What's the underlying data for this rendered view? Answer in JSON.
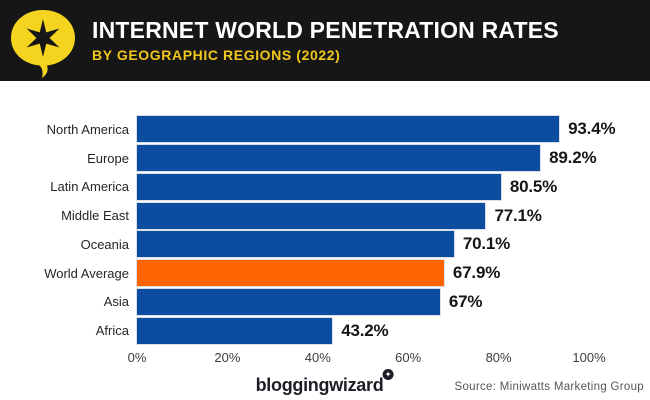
{
  "header": {
    "title": "INTERNET WORLD PENETRATION RATES",
    "subtitle": "BY GEOGRAPHIC REGIONS (2022)",
    "background": "#161616",
    "title_color": "#ffffff",
    "subtitle_color": "#f2c71d",
    "logo_icon": "speech-bubble-star-icon",
    "logo_yellow": "#f5d41f",
    "logo_star_color": "#161616"
  },
  "chart_data": {
    "type": "bar",
    "orientation": "horizontal",
    "title": "Internet World Penetration Rates",
    "subtitle": "By Geographic Regions (2022)",
    "categories": [
      "North America",
      "Europe",
      "Latin America",
      "Middle East",
      "Oceania",
      "World Average",
      "Asia",
      "Africa"
    ],
    "values": [
      93.4,
      89.2,
      80.5,
      77.1,
      70.1,
      67.9,
      67,
      43.2
    ],
    "display_values": [
      "93.4%",
      "89.2%",
      "80.5%",
      "77.1%",
      "70.1%",
      "67.9%",
      "67%",
      "43.2%"
    ],
    "x_ticks": [
      "0%",
      "20%",
      "40%",
      "60%",
      "80%",
      "100%"
    ],
    "xlim": [
      0,
      100
    ],
    "xlabel": "",
    "ylabel": "",
    "grid": false,
    "legend": false,
    "bar_color": "#0c4da2",
    "highlight_color": "#fe6400",
    "highlight_index": 5,
    "value_label_color": "#161616",
    "category_label_color": "#262626"
  },
  "footer": {
    "brand": "bloggingwizard",
    "brand_badge_icon": "sparkle-icon",
    "brand_badge_glyph": "✦",
    "source": "Source: Miniwatts Marketing Group"
  }
}
